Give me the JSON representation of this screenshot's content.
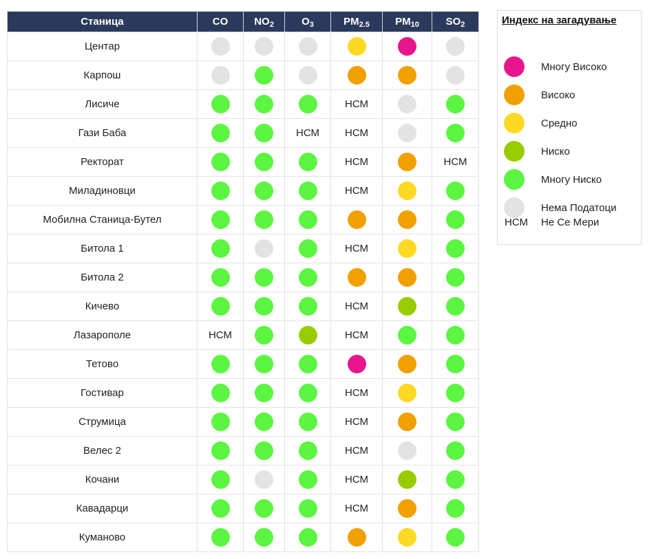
{
  "table": {
    "headers": {
      "station": "Станица",
      "co": "CO",
      "no2": {
        "base": "NO",
        "sub": "2"
      },
      "o3": {
        "base": "O",
        "sub": "3"
      },
      "pm25": {
        "base": "PM",
        "sub": "2.5"
      },
      "pm10": {
        "base": "PM",
        "sub": "10"
      },
      "so2": {
        "base": "SO",
        "sub": "2"
      }
    },
    "pollutants": [
      "co",
      "no2",
      "o3",
      "pm25",
      "pm10",
      "so2"
    ],
    "rows": [
      {
        "station": "Центар",
        "co": "none",
        "no2": "none",
        "o3": "none",
        "pm25": "mid",
        "pm10": "vhigh",
        "so2": "none"
      },
      {
        "station": "Карпош",
        "co": "none",
        "no2": "vlow",
        "o3": "none",
        "pm25": "high",
        "pm10": "high",
        "so2": "none"
      },
      {
        "station": "Лисиче",
        "co": "vlow",
        "no2": "vlow",
        "o3": "vlow",
        "pm25": "nsm",
        "pm10": "none",
        "so2": "vlow"
      },
      {
        "station": "Гази Баба",
        "co": "vlow",
        "no2": "vlow",
        "o3": "nsm",
        "pm25": "nsm",
        "pm10": "none",
        "so2": "vlow"
      },
      {
        "station": "Ректорат",
        "co": "vlow",
        "no2": "vlow",
        "o3": "vlow",
        "pm25": "nsm",
        "pm10": "high",
        "so2": "nsm"
      },
      {
        "station": "Миладиновци",
        "co": "vlow",
        "no2": "vlow",
        "o3": "vlow",
        "pm25": "nsm",
        "pm10": "mid",
        "so2": "vlow"
      },
      {
        "station": "Мобилна Станица-Бутел",
        "co": "vlow",
        "no2": "vlow",
        "o3": "vlow",
        "pm25": "high",
        "pm10": "high",
        "so2": "vlow"
      },
      {
        "station": "Битола 1",
        "co": "vlow",
        "no2": "none",
        "o3": "vlow",
        "pm25": "nsm",
        "pm10": "mid",
        "so2": "vlow"
      },
      {
        "station": "Битола 2",
        "co": "vlow",
        "no2": "vlow",
        "o3": "vlow",
        "pm25": "high",
        "pm10": "high",
        "so2": "vlow"
      },
      {
        "station": "Кичево",
        "co": "vlow",
        "no2": "vlow",
        "o3": "vlow",
        "pm25": "nsm",
        "pm10": "low",
        "so2": "vlow"
      },
      {
        "station": "Лазарополе",
        "co": "nsm",
        "no2": "vlow",
        "o3": "low",
        "pm25": "nsm",
        "pm10": "vlow",
        "so2": "vlow"
      },
      {
        "station": "Тетово",
        "co": "vlow",
        "no2": "vlow",
        "o3": "vlow",
        "pm25": "vhigh",
        "pm10": "high",
        "so2": "vlow"
      },
      {
        "station": "Гостивар",
        "co": "vlow",
        "no2": "vlow",
        "o3": "vlow",
        "pm25": "nsm",
        "pm10": "mid",
        "so2": "vlow"
      },
      {
        "station": "Струмица",
        "co": "vlow",
        "no2": "vlow",
        "o3": "vlow",
        "pm25": "nsm",
        "pm10": "high",
        "so2": "vlow"
      },
      {
        "station": "Велес 2",
        "co": "vlow",
        "no2": "vlow",
        "o3": "vlow",
        "pm25": "nsm",
        "pm10": "none",
        "so2": "vlow"
      },
      {
        "station": "Кочани",
        "co": "vlow",
        "no2": "none",
        "o3": "vlow",
        "pm25": "nsm",
        "pm10": "low",
        "so2": "vlow"
      },
      {
        "station": "Кавадарци",
        "co": "vlow",
        "no2": "vlow",
        "o3": "vlow",
        "pm25": "nsm",
        "pm10": "high",
        "so2": "vlow"
      },
      {
        "station": "Куманово",
        "co": "vlow",
        "no2": "vlow",
        "o3": "vlow",
        "pm25": "high",
        "pm10": "mid",
        "so2": "vlow"
      }
    ]
  },
  "nsm_text": "НСМ",
  "legend": {
    "title": "Индекс на загадување",
    "items": [
      {
        "level": "vhigh",
        "label": "Многу Високо",
        "color": "#e8168c"
      },
      {
        "level": "high",
        "label": "Високо",
        "color": "#f0a000"
      },
      {
        "level": "mid",
        "label": "Средно",
        "color": "#fdd924"
      },
      {
        "level": "low",
        "label": "Ниско",
        "color": "#99cc00"
      },
      {
        "level": "vlow",
        "label": "Многу Ниско",
        "color": "#5cf542"
      },
      {
        "level": "none",
        "label": "Нема Податоци",
        "color": "#e3e3e3"
      }
    ],
    "nsm_item": {
      "symbol": "НСМ",
      "label": "Не Се Мери"
    }
  }
}
